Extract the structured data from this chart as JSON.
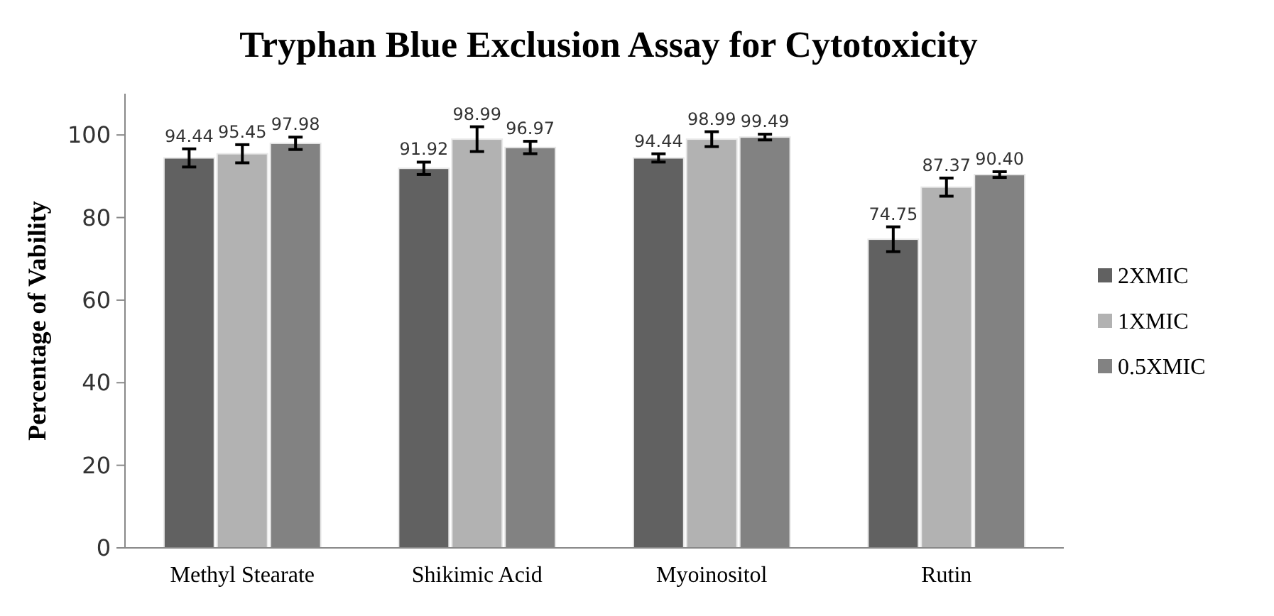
{
  "chart_data": {
    "type": "bar",
    "title": "Tryphan Blue Exclusion Assay for Cytotoxicity",
    "ylabel": "Percentage of Vability",
    "categories": [
      "Methyl Stearate",
      "Shikimic Acid",
      "Myoinositol",
      "Rutin"
    ],
    "series": [
      {
        "name": "2XMIC",
        "color": "#616161",
        "values": [
          94.44,
          91.92,
          94.44,
          74.75
        ],
        "value_labels": [
          "94.44",
          "91.92",
          "94.44",
          "74.75"
        ],
        "errors": [
          2.2,
          1.5,
          1,
          3
        ]
      },
      {
        "name": "1XMIC",
        "color": "#b2b2b2",
        "values": [
          95.45,
          98.99,
          98.99,
          87.37
        ],
        "value_labels": [
          "95.45",
          "98.99",
          "98.99",
          "87.37"
        ],
        "errors": [
          2.2,
          3,
          1.8,
          2.2
        ]
      },
      {
        "name": "0.5XMIC",
        "color": "#828282",
        "values": [
          97.98,
          96.97,
          99.49,
          90.4
        ],
        "value_labels": [
          "97.98",
          "96.97",
          "99.49",
          "90.40"
        ],
        "errors": [
          1.5,
          1.5,
          0.7,
          0.7
        ]
      }
    ],
    "ylim": [
      0,
      110
    ],
    "yticks": [
      0,
      20,
      40,
      60,
      80,
      100
    ],
    "grid": false,
    "legend": "right"
  }
}
